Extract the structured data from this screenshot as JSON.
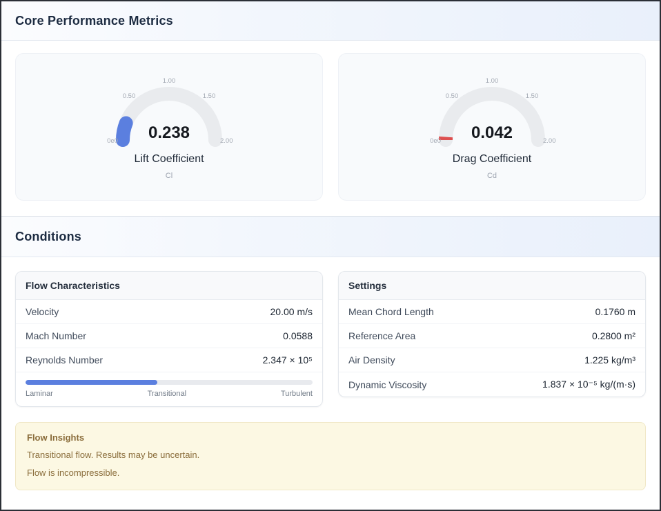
{
  "metrics": {
    "title": "Core Performance Metrics",
    "gauges": [
      {
        "value": "0.238",
        "label": "Lift Coefficient",
        "sublabel": "Cl",
        "fraction": 0.119,
        "color": "#5b7fdf",
        "ticks": [
          "0e0",
          "0.50",
          "1.00",
          "1.50",
          "2.00"
        ]
      },
      {
        "value": "0.042",
        "label": "Drag Coefficient",
        "sublabel": "Cd",
        "fraction": 0.021,
        "color": "#dd4f4f",
        "ticks": [
          "0e0",
          "0.50",
          "1.00",
          "1.50",
          "2.00"
        ]
      }
    ]
  },
  "conditions": {
    "title": "Conditions",
    "flow": {
      "title": "Flow Characteristics",
      "rows": [
        {
          "label": "Velocity",
          "value": "20.00 m/s"
        },
        {
          "label": "Mach Number",
          "value": "0.0588"
        },
        {
          "label": "Reynolds Number",
          "value": "2.347 × 10⁵"
        }
      ],
      "regime": {
        "percent": 46,
        "color": "#5b7fdf",
        "labels": [
          "Laminar",
          "Transitional",
          "Turbulent"
        ]
      }
    },
    "settings": {
      "title": "Settings",
      "rows": [
        {
          "label": "Mean Chord Length",
          "value": "0.1760 m"
        },
        {
          "label": "Reference Area",
          "value": "0.2800 m²"
        },
        {
          "label": "Air Density",
          "value": "1.225 kg/m³"
        },
        {
          "label": "Dynamic Viscosity",
          "value": "1.837 × 10⁻⁵ kg/(m·s)"
        }
      ]
    },
    "insights": {
      "title": "Flow Insights",
      "messages": [
        "Transitional flow. Results may be uncertain.",
        "Flow is incompressible."
      ]
    }
  }
}
